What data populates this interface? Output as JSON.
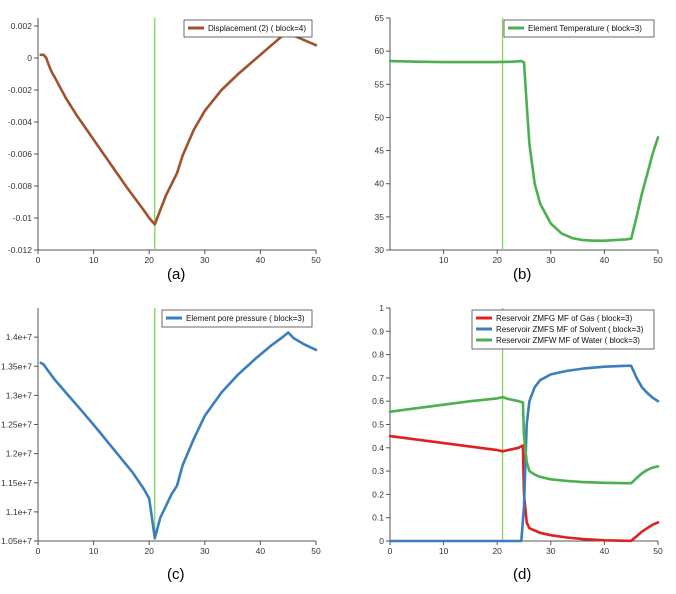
{
  "chart_data": [
    {
      "type": "line",
      "caption": "(a)",
      "xlim": [
        0,
        50
      ],
      "ylim": [
        -0.012,
        0.0025
      ],
      "xticks": [
        {
          "v": 0,
          "label": "0"
        },
        {
          "v": 10,
          "label": "10"
        },
        {
          "v": 20,
          "label": "20"
        },
        {
          "v": 30,
          "label": "30"
        },
        {
          "v": 40,
          "label": "40"
        },
        {
          "v": 50,
          "label": "50"
        }
      ],
      "yticks": [
        {
          "v": 0.002,
          "label": "0.002"
        },
        {
          "v": 0,
          "label": "0"
        },
        {
          "v": -0.002,
          "label": "-0.002"
        },
        {
          "v": -0.004,
          "label": "-0.004"
        },
        {
          "v": -0.006,
          "label": "-0.006"
        },
        {
          "v": -0.008,
          "label": "-0.008"
        },
        {
          "v": -0.01,
          "label": "-0.01"
        },
        {
          "v": -0.012,
          "label": "-0.012"
        }
      ],
      "vline": {
        "x": 21,
        "color": "#7ed957"
      },
      "legend": "top-right",
      "series": [
        {
          "name": "Displacement (2) ( block=4)",
          "color": "#a0522d",
          "x": [
            0.5,
            1,
            1.5,
            2,
            2.5,
            3,
            5,
            7,
            10,
            13,
            16,
            19,
            20,
            21,
            22,
            23,
            24,
            25,
            26,
            28,
            30,
            33,
            36,
            39,
            42,
            44,
            45,
            46,
            48,
            50
          ],
          "y": [
            0.0002,
            0.0002,
            0,
            -0.0005,
            -0.0009,
            -0.0012,
            -0.0025,
            -0.0036,
            -0.0051,
            -0.0066,
            -0.0081,
            -0.0095,
            -0.01,
            -0.0104,
            -0.0095,
            -0.0086,
            -0.0079,
            -0.0072,
            -0.0061,
            -0.0045,
            -0.0033,
            -0.002,
            -0.001,
            -0.0001,
            0.0008,
            0.0014,
            0.0016,
            0.0014,
            0.0011,
            0.0008
          ]
        }
      ]
    },
    {
      "type": "line",
      "caption": "(b)",
      "xlim": [
        0,
        50
      ],
      "ylim": [
        30,
        65
      ],
      "xticks": [
        {
          "v": 10,
          "label": "10"
        },
        {
          "v": 20,
          "label": "20"
        },
        {
          "v": 30,
          "label": "30"
        },
        {
          "v": 40,
          "label": "40"
        },
        {
          "v": 50,
          "label": "50"
        }
      ],
      "yticks": [
        {
          "v": 65,
          "label": "65"
        },
        {
          "v": 60,
          "label": "60"
        },
        {
          "v": 55,
          "label": "55"
        },
        {
          "v": 50,
          "label": "50"
        },
        {
          "v": 45,
          "label": "45"
        },
        {
          "v": 40,
          "label": "40"
        },
        {
          "v": 35,
          "label": "35"
        },
        {
          "v": 30,
          "label": "30"
        }
      ],
      "vline": {
        "x": 21,
        "color": "#7ed957"
      },
      "legend": "top-right",
      "series": [
        {
          "name": "Element Temperature ( block=3)",
          "color": "#4caf50",
          "x": [
            0,
            5,
            10,
            15,
            20,
            23,
            24.5,
            25,
            25.5,
            26,
            27,
            28,
            30,
            32,
            34,
            36,
            38,
            40,
            42,
            44,
            45,
            46,
            47,
            48,
            49,
            50
          ],
          "y": [
            58.5,
            58.4,
            58.35,
            58.35,
            58.35,
            58.4,
            58.5,
            58.3,
            52,
            46,
            40,
            37,
            34,
            32.5,
            31.8,
            31.5,
            31.4,
            31.4,
            31.5,
            31.6,
            31.7,
            35,
            38.5,
            41.5,
            44.5,
            47
          ]
        }
      ]
    },
    {
      "type": "line",
      "caption": "(c)",
      "xlim": [
        0,
        50
      ],
      "ylim": [
        10500000,
        14500000
      ],
      "xticks": [
        {
          "v": 0,
          "label": "0"
        },
        {
          "v": 10,
          "label": "10"
        },
        {
          "v": 20,
          "label": "20"
        },
        {
          "v": 30,
          "label": "30"
        },
        {
          "v": 40,
          "label": "40"
        },
        {
          "v": 50,
          "label": "50"
        }
      ],
      "yticks": [
        {
          "v": 14000000,
          "label": "1.4e+7"
        },
        {
          "v": 13500000,
          "label": "1.35e+7"
        },
        {
          "v": 13000000,
          "label": "1.3e+7"
        },
        {
          "v": 12500000,
          "label": "1.25e+7"
        },
        {
          "v": 12000000,
          "label": "1.2e+7"
        },
        {
          "v": 11500000,
          "label": "1.15e+7"
        },
        {
          "v": 11000000,
          "label": "1.1e+7"
        },
        {
          "v": 10500000,
          "label": "1.05e+7"
        }
      ],
      "vline": {
        "x": 21,
        "color": "#7ed957"
      },
      "legend": "top-right",
      "series": [
        {
          "name": "Element pore pressure ( block=3)",
          "color": "#3a7ebf",
          "x": [
            0.5,
            1,
            2,
            3,
            5,
            8,
            11,
            14,
            17,
            19,
            20,
            21,
            22,
            23,
            24,
            25,
            26,
            28,
            30,
            33,
            36,
            39,
            42,
            44,
            45,
            46,
            48,
            50
          ],
          "y": [
            13560000,
            13530000,
            13400000,
            13270000,
            13050000,
            12720000,
            12380000,
            12030000,
            11680000,
            11400000,
            11230000,
            10550000,
            10900000,
            11100000,
            11300000,
            11450000,
            11800000,
            12250000,
            12650000,
            13050000,
            13360000,
            13620000,
            13860000,
            14000000,
            14080000,
            13980000,
            13870000,
            13780000
          ]
        }
      ]
    },
    {
      "type": "line",
      "caption": "(d)",
      "xlim": [
        0,
        50
      ],
      "ylim": [
        0,
        1
      ],
      "xticks": [
        {
          "v": 0,
          "label": "0"
        },
        {
          "v": 10,
          "label": "10"
        },
        {
          "v": 20,
          "label": "20"
        },
        {
          "v": 30,
          "label": "30"
        },
        {
          "v": 40,
          "label": "40"
        },
        {
          "v": 50,
          "label": "50"
        }
      ],
      "yticks": [
        {
          "v": 1,
          "label": "1"
        },
        {
          "v": 0.9,
          "label": "0.9"
        },
        {
          "v": 0.8,
          "label": "0.8"
        },
        {
          "v": 0.7,
          "label": "0.7"
        },
        {
          "v": 0.6,
          "label": "0.6"
        },
        {
          "v": 0.5,
          "label": "0.5"
        },
        {
          "v": 0.4,
          "label": "0.4"
        },
        {
          "v": 0.3,
          "label": "0.3"
        },
        {
          "v": 0.2,
          "label": "0.2"
        },
        {
          "v": 0.1,
          "label": "0.1"
        },
        {
          "v": 0,
          "label": "0"
        }
      ],
      "vline": {
        "x": 21,
        "color": "#7ed957"
      },
      "legend": "top-right",
      "series": [
        {
          "name": "Reservoir ZMFG MF of Gas ( block=3)",
          "color": "#e02020",
          "x": [
            0,
            5,
            10,
            15,
            20,
            21,
            22,
            24,
            24.8,
            25,
            25.5,
            26,
            27,
            28,
            30,
            33,
            36,
            40,
            44,
            45,
            46,
            47,
            48,
            49,
            50
          ],
          "y": [
            0.45,
            0.435,
            0.42,
            0.405,
            0.39,
            0.385,
            0.39,
            0.4,
            0.41,
            0.2,
            0.08,
            0.055,
            0.045,
            0.035,
            0.025,
            0.015,
            0.008,
            0.003,
            0.001,
            0.001,
            0.02,
            0.04,
            0.055,
            0.07,
            0.08
          ]
        },
        {
          "name": "Reservoir ZMFS MF of Solvent ( block=3)",
          "color": "#3a7ebf",
          "x": [
            0,
            5,
            10,
            15,
            20,
            24.5,
            25,
            25.5,
            26,
            27,
            28,
            30,
            33,
            36,
            40,
            44,
            45,
            46,
            47,
            48,
            49,
            50
          ],
          "y": [
            0,
            0,
            0,
            0,
            0,
            0,
            0.15,
            0.5,
            0.6,
            0.66,
            0.69,
            0.715,
            0.73,
            0.74,
            0.748,
            0.752,
            0.752,
            0.7,
            0.66,
            0.635,
            0.615,
            0.6
          ]
        },
        {
          "name": "Reservoir ZMFW MF of Water ( block=3)",
          "color": "#4caf50",
          "x": [
            0,
            5,
            10,
            15,
            20,
            21,
            22,
            24,
            24.8,
            25,
            25.5,
            26,
            27,
            28,
            30,
            33,
            36,
            40,
            44,
            45,
            46,
            47,
            48,
            49,
            50
          ],
          "y": [
            0.555,
            0.57,
            0.585,
            0.6,
            0.612,
            0.618,
            0.61,
            0.6,
            0.595,
            0.45,
            0.34,
            0.3,
            0.285,
            0.275,
            0.265,
            0.258,
            0.253,
            0.25,
            0.248,
            0.248,
            0.27,
            0.29,
            0.305,
            0.315,
            0.32
          ]
        }
      ]
    }
  ]
}
